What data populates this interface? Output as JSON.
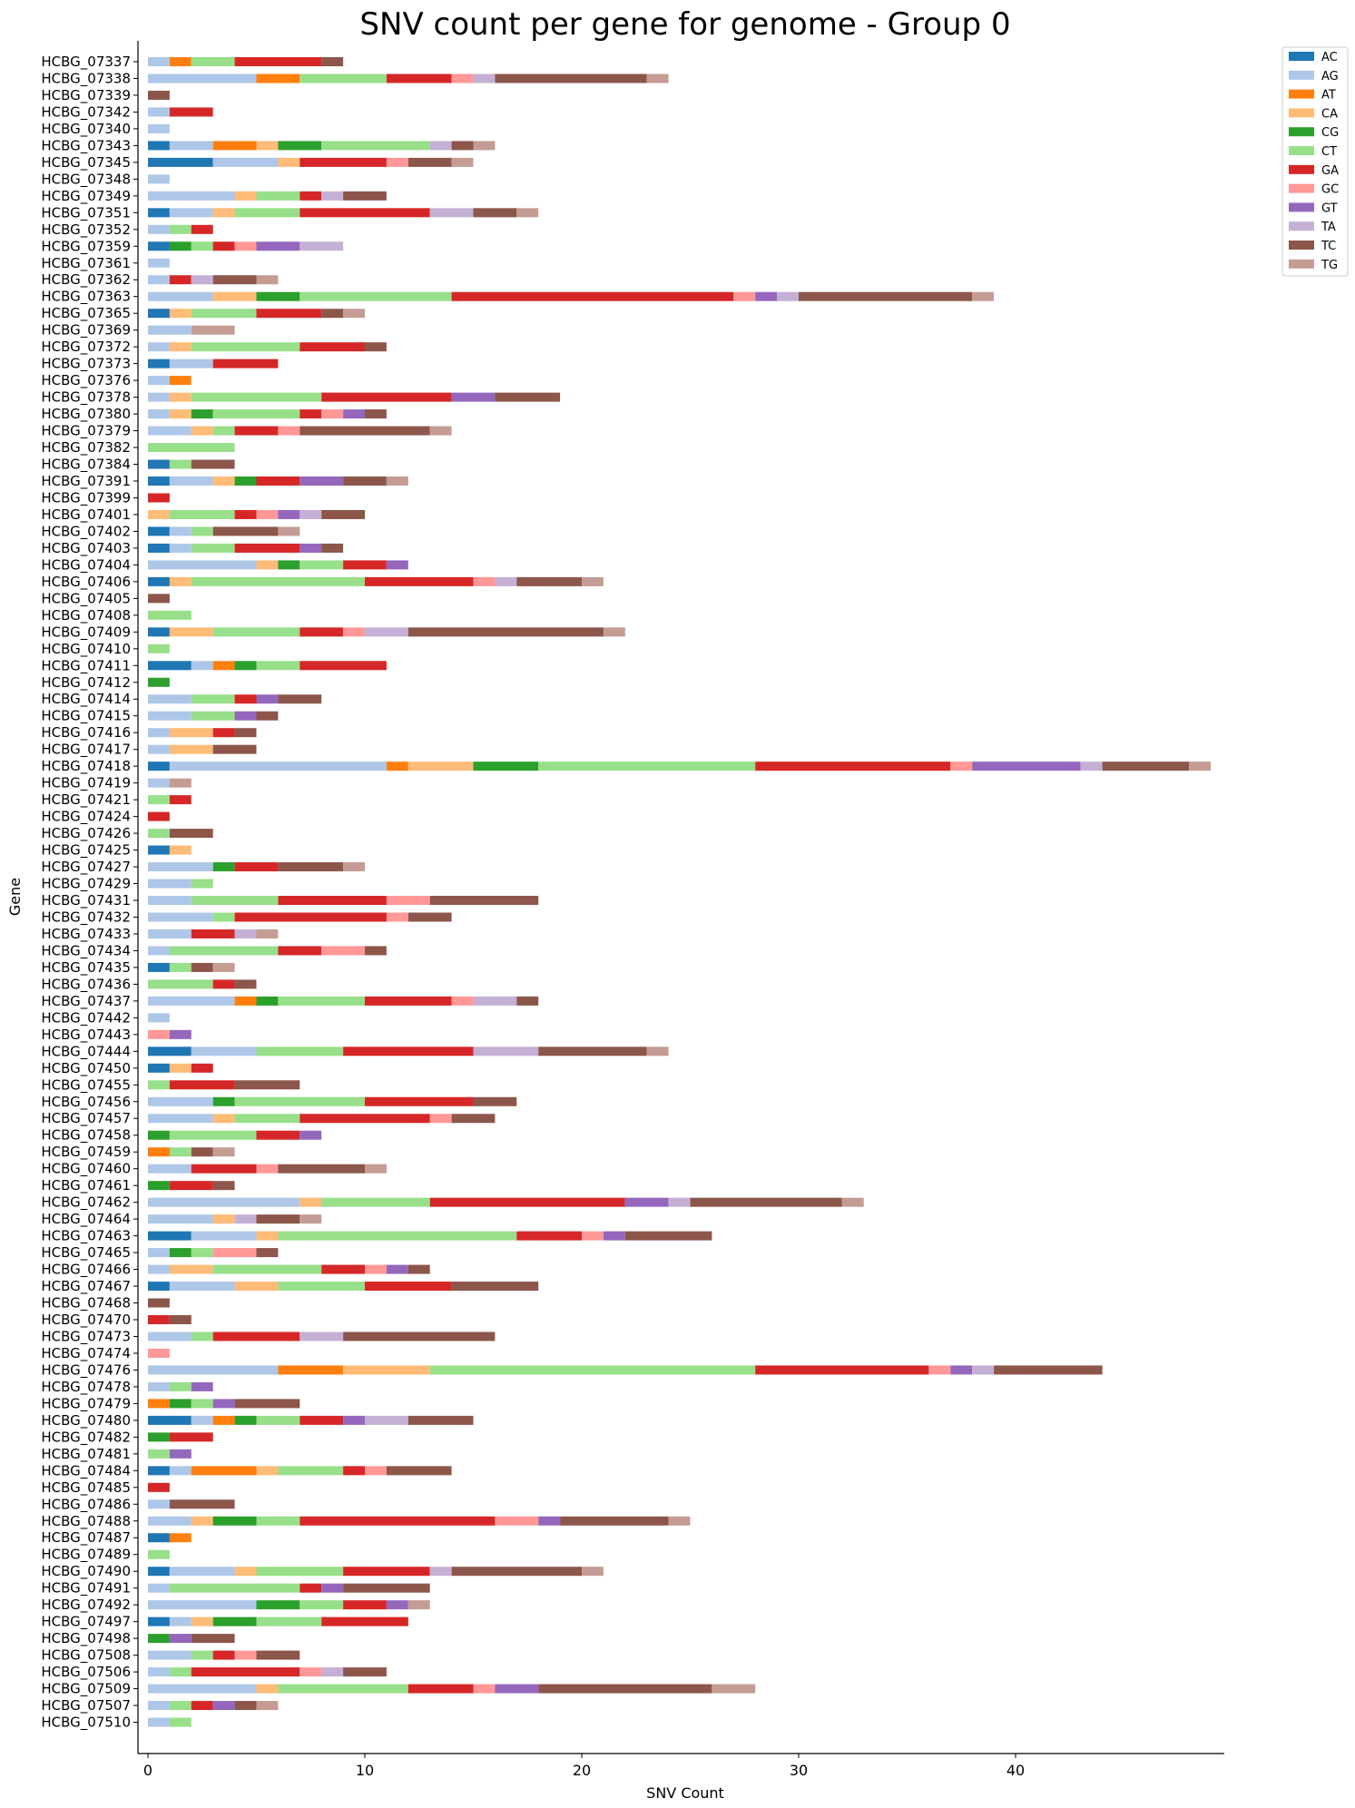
{
  "chart_data": {
    "type": "bar",
    "orientation": "horizontal",
    "stacked": true,
    "title": "SNV count per gene for genome - Group 0",
    "xlabel": "SNV Count",
    "ylabel": "Gene",
    "xlim": [
      -0.5,
      49.5
    ],
    "xticks": [
      0,
      10,
      20,
      30,
      40
    ],
    "grid": false,
    "legend_position": "upper-right-outside",
    "categories": [
      "HCBG_07337",
      "HCBG_07338",
      "HCBG_07339",
      "HCBG_07342",
      "HCBG_07340",
      "HCBG_07343",
      "HCBG_07345",
      "HCBG_07348",
      "HCBG_07349",
      "HCBG_07351",
      "HCBG_07352",
      "HCBG_07359",
      "HCBG_07361",
      "HCBG_07362",
      "HCBG_07363",
      "HCBG_07365",
      "HCBG_07369",
      "HCBG_07372",
      "HCBG_07373",
      "HCBG_07376",
      "HCBG_07378",
      "HCBG_07380",
      "HCBG_07379",
      "HCBG_07382",
      "HCBG_07384",
      "HCBG_07391",
      "HCBG_07399",
      "HCBG_07401",
      "HCBG_07402",
      "HCBG_07403",
      "HCBG_07404",
      "HCBG_07406",
      "HCBG_07405",
      "HCBG_07408",
      "HCBG_07409",
      "HCBG_07410",
      "HCBG_07411",
      "HCBG_07412",
      "HCBG_07414",
      "HCBG_07415",
      "HCBG_07416",
      "HCBG_07417",
      "HCBG_07418",
      "HCBG_07419",
      "HCBG_07421",
      "HCBG_07424",
      "HCBG_07426",
      "HCBG_07425",
      "HCBG_07427",
      "HCBG_07429",
      "HCBG_07431",
      "HCBG_07432",
      "HCBG_07433",
      "HCBG_07434",
      "HCBG_07435",
      "HCBG_07436",
      "HCBG_07437",
      "HCBG_07442",
      "HCBG_07443",
      "HCBG_07444",
      "HCBG_07450",
      "HCBG_07455",
      "HCBG_07456",
      "HCBG_07457",
      "HCBG_07458",
      "HCBG_07459",
      "HCBG_07460",
      "HCBG_07461",
      "HCBG_07462",
      "HCBG_07464",
      "HCBG_07463",
      "HCBG_07465",
      "HCBG_07466",
      "HCBG_07467",
      "HCBG_07468",
      "HCBG_07470",
      "HCBG_07473",
      "HCBG_07474",
      "HCBG_07476",
      "HCBG_07478",
      "HCBG_07479",
      "HCBG_07480",
      "HCBG_07482",
      "HCBG_07481",
      "HCBG_07484",
      "HCBG_07485",
      "HCBG_07486",
      "HCBG_07488",
      "HCBG_07487",
      "HCBG_07489",
      "HCBG_07490",
      "HCBG_07491",
      "HCBG_07492",
      "HCBG_07497",
      "HCBG_07498",
      "HCBG_07508",
      "HCBG_07506",
      "HCBG_07509",
      "HCBG_07507",
      "HCBG_07510"
    ],
    "series": [
      {
        "name": "AC",
        "color": "#1f77b4",
        "values": [
          0,
          0,
          0,
          0,
          0,
          1,
          3,
          0,
          0,
          1,
          0,
          1,
          0,
          0,
          0,
          1,
          0,
          0,
          1,
          0,
          0,
          0,
          0,
          0,
          1,
          1,
          0,
          0,
          1,
          1,
          0,
          1,
          0,
          0,
          1,
          0,
          2,
          0,
          0,
          0,
          0,
          0,
          1,
          0,
          0,
          0,
          0,
          1,
          0,
          0,
          0,
          0,
          0,
          0,
          1,
          0,
          0,
          0,
          0,
          2,
          1,
          0,
          0,
          0,
          0,
          0,
          0,
          0,
          0,
          0,
          2,
          0,
          0,
          1,
          0,
          0,
          0,
          0,
          0,
          0,
          0,
          2,
          0,
          0,
          1,
          0,
          0,
          0,
          1,
          0,
          1,
          0,
          0,
          1,
          0,
          0,
          0,
          0,
          0,
          0
        ]
      },
      {
        "name": "AG",
        "color": "#aec7e8",
        "values": [
          1,
          5,
          0,
          1,
          1,
          2,
          3,
          1,
          4,
          2,
          1,
          0,
          1,
          1,
          3,
          0,
          2,
          1,
          2,
          1,
          1,
          1,
          2,
          0,
          0,
          2,
          0,
          0,
          1,
          1,
          5,
          0,
          0,
          0,
          0,
          0,
          1,
          0,
          2,
          2,
          1,
          1,
          10,
          1,
          0,
          0,
          0,
          0,
          3,
          2,
          2,
          3,
          2,
          1,
          0,
          0,
          4,
          1,
          0,
          3,
          0,
          0,
          3,
          3,
          0,
          0,
          2,
          0,
          7,
          3,
          3,
          1,
          1,
          3,
          0,
          0,
          2,
          0,
          6,
          1,
          0,
          1,
          0,
          0,
          1,
          0,
          1,
          2,
          0,
          0,
          3,
          1,
          5,
          1,
          0,
          2,
          1,
          5,
          1,
          1
        ]
      },
      {
        "name": "AT",
        "color": "#ff7f0e",
        "values": [
          1,
          2,
          0,
          0,
          0,
          2,
          0,
          0,
          0,
          0,
          0,
          0,
          0,
          0,
          0,
          0,
          0,
          0,
          0,
          1,
          0,
          0,
          0,
          0,
          0,
          0,
          0,
          0,
          0,
          0,
          0,
          0,
          0,
          0,
          0,
          0,
          1,
          0,
          0,
          0,
          0,
          0,
          1,
          0,
          0,
          0,
          0,
          0,
          0,
          0,
          0,
          0,
          0,
          0,
          0,
          0,
          1,
          0,
          0,
          0,
          0,
          0,
          0,
          0,
          0,
          1,
          0,
          0,
          0,
          0,
          0,
          0,
          0,
          0,
          0,
          0,
          0,
          0,
          3,
          0,
          1,
          1,
          0,
          0,
          3,
          0,
          0,
          0,
          1,
          0,
          0,
          0,
          0,
          0,
          0,
          0,
          0,
          0,
          0,
          0
        ]
      },
      {
        "name": "CA",
        "color": "#ffbb78",
        "values": [
          0,
          0,
          0,
          0,
          0,
          1,
          1,
          0,
          1,
          1,
          0,
          0,
          0,
          0,
          2,
          1,
          0,
          1,
          0,
          0,
          1,
          1,
          1,
          0,
          0,
          1,
          0,
          1,
          0,
          0,
          1,
          1,
          0,
          0,
          2,
          0,
          0,
          0,
          0,
          0,
          2,
          2,
          3,
          0,
          0,
          0,
          0,
          1,
          0,
          0,
          0,
          0,
          0,
          0,
          0,
          0,
          0,
          0,
          0,
          0,
          1,
          0,
          0,
          1,
          0,
          0,
          0,
          0,
          1,
          1,
          1,
          0,
          2,
          2,
          0,
          0,
          0,
          0,
          4,
          0,
          0,
          0,
          0,
          0,
          1,
          0,
          0,
          1,
          0,
          0,
          1,
          0,
          0,
          1,
          0,
          0,
          0,
          1,
          0,
          0
        ]
      },
      {
        "name": "CG",
        "color": "#2ca02c",
        "values": [
          0,
          0,
          0,
          0,
          0,
          2,
          0,
          0,
          0,
          0,
          0,
          1,
          0,
          0,
          2,
          0,
          0,
          0,
          0,
          0,
          0,
          1,
          0,
          0,
          0,
          1,
          0,
          0,
          0,
          0,
          1,
          0,
          0,
          0,
          0,
          0,
          1,
          1,
          0,
          0,
          0,
          0,
          3,
          0,
          0,
          0,
          0,
          0,
          1,
          0,
          0,
          0,
          0,
          0,
          0,
          0,
          1,
          0,
          0,
          0,
          0,
          0,
          1,
          0,
          1,
          0,
          0,
          1,
          0,
          0,
          0,
          1,
          0,
          0,
          0,
          0,
          0,
          0,
          0,
          0,
          1,
          1,
          1,
          0,
          0,
          0,
          0,
          2,
          0,
          0,
          0,
          0,
          2,
          2,
          1,
          0,
          0,
          0,
          0,
          0
        ]
      },
      {
        "name": "CT",
        "color": "#98df8a",
        "values": [
          2,
          4,
          0,
          0,
          0,
          5,
          0,
          0,
          2,
          3,
          1,
          1,
          0,
          0,
          7,
          3,
          0,
          5,
          0,
          0,
          6,
          4,
          1,
          4,
          1,
          0,
          0,
          3,
          1,
          2,
          2,
          8,
          0,
          2,
          4,
          1,
          2,
          0,
          2,
          2,
          0,
          0,
          10,
          0,
          1,
          0,
          1,
          0,
          0,
          1,
          4,
          1,
          0,
          5,
          1,
          3,
          4,
          0,
          0,
          4,
          0,
          1,
          6,
          3,
          4,
          1,
          0,
          0,
          5,
          0,
          11,
          1,
          5,
          4,
          0,
          0,
          1,
          0,
          15,
          1,
          1,
          2,
          0,
          1,
          3,
          0,
          0,
          2,
          0,
          1,
          4,
          6,
          2,
          3,
          0,
          1,
          1,
          6,
          1,
          1
        ]
      },
      {
        "name": "GA",
        "color": "#d62728",
        "values": [
          4,
          3,
          0,
          2,
          0,
          0,
          4,
          0,
          1,
          6,
          1,
          1,
          0,
          1,
          13,
          3,
          0,
          3,
          3,
          0,
          6,
          1,
          2,
          0,
          0,
          2,
          1,
          1,
          0,
          3,
          2,
          5,
          0,
          0,
          2,
          0,
          4,
          0,
          1,
          0,
          1,
          0,
          9,
          0,
          1,
          1,
          0,
          0,
          2,
          0,
          5,
          7,
          2,
          2,
          0,
          1,
          4,
          0,
          0,
          6,
          1,
          3,
          5,
          6,
          2,
          0,
          3,
          2,
          9,
          0,
          3,
          0,
          2,
          4,
          0,
          1,
          4,
          0,
          8,
          0,
          0,
          2,
          2,
          0,
          1,
          1,
          0,
          9,
          0,
          0,
          4,
          1,
          2,
          4,
          0,
          1,
          5,
          3,
          1,
          0
        ]
      },
      {
        "name": "GC",
        "color": "#ff9896",
        "values": [
          0,
          1,
          0,
          0,
          0,
          0,
          1,
          0,
          0,
          0,
          0,
          1,
          0,
          0,
          1,
          0,
          0,
          0,
          0,
          0,
          0,
          1,
          1,
          0,
          0,
          0,
          0,
          1,
          0,
          0,
          0,
          1,
          0,
          0,
          1,
          0,
          0,
          0,
          0,
          0,
          0,
          0,
          1,
          0,
          0,
          0,
          0,
          0,
          0,
          0,
          2,
          1,
          0,
          2,
          0,
          0,
          1,
          0,
          1,
          0,
          0,
          0,
          0,
          1,
          0,
          0,
          1,
          0,
          0,
          0,
          1,
          2,
          1,
          0,
          0,
          0,
          0,
          1,
          1,
          0,
          0,
          0,
          0,
          0,
          1,
          0,
          0,
          2,
          0,
          0,
          0,
          0,
          0,
          0,
          0,
          1,
          1,
          1,
          0,
          0
        ]
      },
      {
        "name": "GT",
        "color": "#9467bd",
        "values": [
          0,
          0,
          0,
          0,
          0,
          0,
          0,
          0,
          0,
          0,
          0,
          2,
          0,
          0,
          1,
          0,
          0,
          0,
          0,
          0,
          2,
          1,
          0,
          0,
          0,
          2,
          0,
          1,
          0,
          1,
          1,
          0,
          0,
          0,
          0,
          0,
          0,
          0,
          1,
          1,
          0,
          0,
          5,
          0,
          0,
          0,
          0,
          0,
          0,
          0,
          0,
          0,
          0,
          0,
          0,
          0,
          0,
          0,
          1,
          0,
          0,
          0,
          0,
          0,
          1,
          0,
          0,
          0,
          2,
          0,
          1,
          0,
          1,
          0,
          0,
          0,
          0,
          0,
          1,
          1,
          1,
          1,
          0,
          1,
          0,
          0,
          0,
          1,
          0,
          0,
          0,
          1,
          1,
          0,
          1,
          0,
          0,
          2,
          1,
          0
        ]
      },
      {
        "name": "TA",
        "color": "#c5b0d5",
        "values": [
          0,
          1,
          0,
          0,
          0,
          1,
          0,
          0,
          1,
          2,
          0,
          2,
          0,
          1,
          1,
          0,
          0,
          0,
          0,
          0,
          0,
          0,
          0,
          0,
          0,
          0,
          0,
          1,
          0,
          0,
          0,
          1,
          0,
          0,
          2,
          0,
          0,
          0,
          0,
          0,
          0,
          0,
          1,
          0,
          0,
          0,
          0,
          0,
          0,
          0,
          0,
          0,
          1,
          0,
          0,
          0,
          2,
          0,
          0,
          3,
          0,
          0,
          0,
          0,
          0,
          0,
          0,
          0,
          1,
          1,
          0,
          0,
          0,
          0,
          0,
          0,
          2,
          0,
          1,
          0,
          0,
          2,
          0,
          0,
          0,
          0,
          0,
          0,
          0,
          0,
          1,
          0,
          0,
          0,
          0,
          0,
          1,
          0,
          0,
          0
        ]
      },
      {
        "name": "TC",
        "color": "#8c564b",
        "values": [
          1,
          7,
          1,
          0,
          0,
          1,
          2,
          0,
          2,
          2,
          0,
          0,
          0,
          2,
          8,
          1,
          0,
          1,
          0,
          0,
          3,
          1,
          6,
          0,
          2,
          2,
          0,
          2,
          3,
          1,
          0,
          3,
          1,
          0,
          9,
          0,
          0,
          0,
          2,
          1,
          1,
          2,
          4,
          0,
          0,
          0,
          2,
          0,
          3,
          0,
          5,
          2,
          0,
          1,
          1,
          1,
          1,
          0,
          0,
          5,
          0,
          3,
          2,
          2,
          0,
          1,
          4,
          1,
          7,
          2,
          4,
          1,
          1,
          4,
          1,
          1,
          7,
          0,
          5,
          0,
          3,
          3,
          0,
          0,
          3,
          0,
          3,
          5,
          0,
          0,
          6,
          4,
          0,
          0,
          2,
          2,
          2,
          8,
          1,
          0
        ]
      },
      {
        "name": "TG",
        "color": "#c49c94",
        "values": [
          0,
          1,
          0,
          0,
          0,
          1,
          1,
          0,
          0,
          1,
          0,
          0,
          0,
          1,
          1,
          1,
          2,
          0,
          0,
          0,
          0,
          0,
          1,
          0,
          0,
          1,
          0,
          0,
          1,
          0,
          0,
          1,
          0,
          0,
          1,
          0,
          0,
          0,
          0,
          0,
          0,
          0,
          1,
          1,
          0,
          0,
          0,
          0,
          1,
          0,
          0,
          0,
          1,
          0,
          1,
          0,
          0,
          0,
          0,
          1,
          0,
          0,
          0,
          0,
          0,
          1,
          1,
          0,
          1,
          1,
          0,
          0,
          0,
          0,
          0,
          0,
          0,
          0,
          0,
          0,
          0,
          0,
          0,
          0,
          0,
          0,
          0,
          1,
          0,
          0,
          1,
          0,
          1,
          0,
          0,
          0,
          0,
          2,
          1,
          0
        ]
      }
    ]
  }
}
